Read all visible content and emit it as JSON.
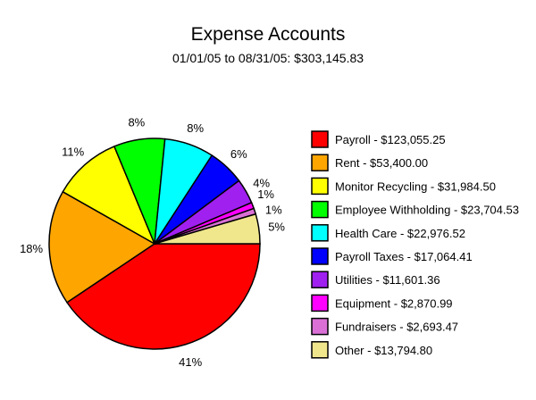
{
  "chart_data": {
    "type": "pie",
    "title": "Expense Accounts",
    "subtitle": "01/01/05 to 08/31/05: $303,145.83",
    "legend_position": "right",
    "slices": [
      {
        "label": "Payroll - $123,055.25",
        "value": 123055.25,
        "percent_label": "41%",
        "color": "#ff0000"
      },
      {
        "label": "Rent - $53,400.00",
        "value": 53400.0,
        "percent_label": "18%",
        "color": "#ffa500"
      },
      {
        "label": "Monitor Recycling - $31,984.50",
        "value": 31984.5,
        "percent_label": "11%",
        "color": "#ffff00"
      },
      {
        "label": "Employee Withholding - $23,704.53",
        "value": 23704.53,
        "percent_label": "8%",
        "color": "#00ff00"
      },
      {
        "label": "Health Care - $22,976.52",
        "value": 22976.52,
        "percent_label": "8%",
        "color": "#00ffff"
      },
      {
        "label": "Payroll Taxes - $17,064.41",
        "value": 17064.41,
        "percent_label": "6%",
        "color": "#0000ff"
      },
      {
        "label": "Utilities - $11,601.36",
        "value": 11601.36,
        "percent_label": "4%",
        "color": "#a020f0"
      },
      {
        "label": "Equipment - $2,870.99",
        "value": 2870.99,
        "percent_label": "1%",
        "color": "#ff00ff"
      },
      {
        "label": "Fundraisers - $2,693.47",
        "value": 2693.47,
        "percent_label": "1%",
        "color": "#da70d6"
      },
      {
        "label": "Other - $13,794.80",
        "value": 13794.8,
        "percent_label": "5%",
        "color": "#f0e68c"
      }
    ]
  }
}
